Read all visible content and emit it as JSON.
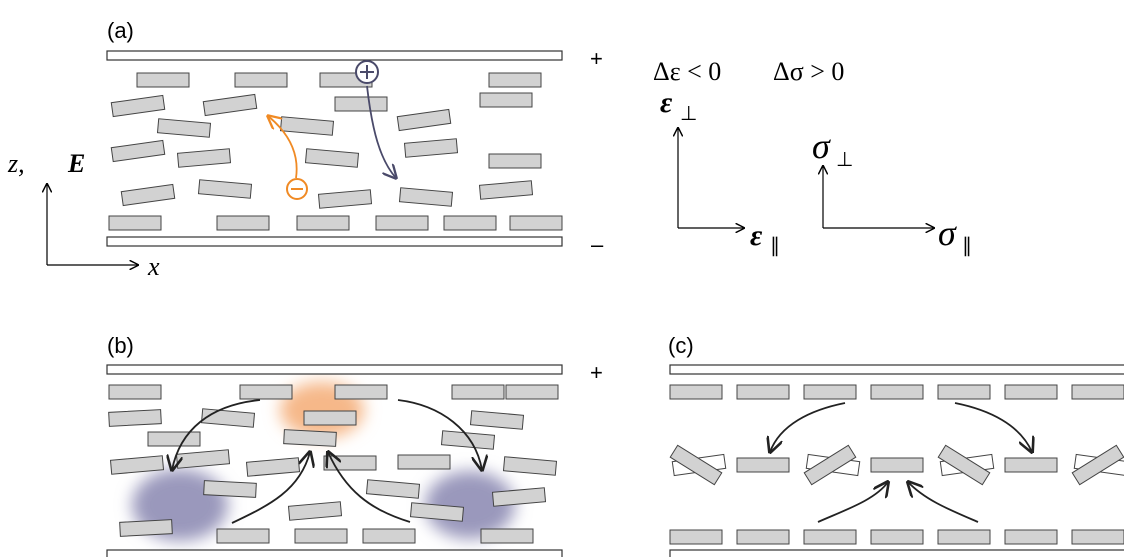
{
  "panels": [
    {
      "label": "(a)",
      "plus": "+",
      "minus": "–"
    },
    {
      "label": "(b)",
      "plus": "+",
      "minus": "–"
    },
    {
      "label": "(c)"
    }
  ],
  "axes": {
    "z_label": "z,",
    "e_label": "E",
    "x_label": "x"
  },
  "anisotropy": {
    "dielectric": "Δε < 0",
    "conductivity": "Δσ > 0",
    "eps": "ε",
    "sigma": "σ",
    "perp": "⊥",
    "par": "∥"
  }
}
